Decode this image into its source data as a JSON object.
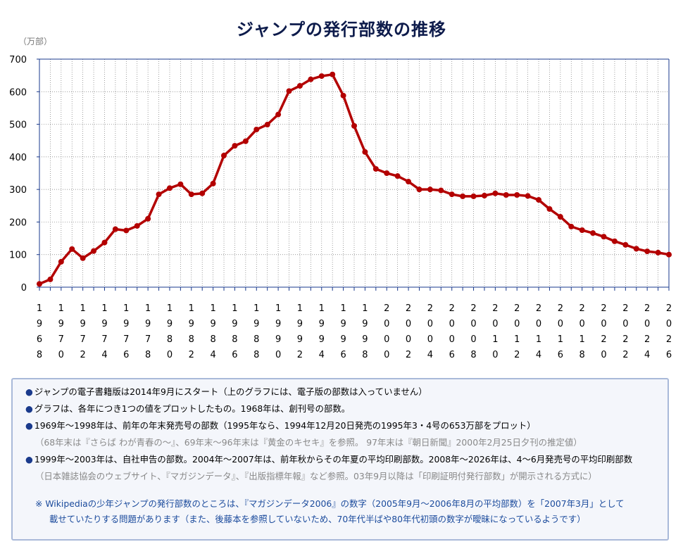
{
  "title": "ジャンプの発行部数の推移",
  "unit_label": "（万部）",
  "chart_data": {
    "type": "line",
    "x": [
      1968,
      1969,
      1970,
      1971,
      1972,
      1973,
      1974,
      1975,
      1976,
      1977,
      1978,
      1979,
      1980,
      1981,
      1982,
      1983,
      1984,
      1985,
      1986,
      1987,
      1988,
      1989,
      1990,
      1991,
      1992,
      1993,
      1994,
      1995,
      1996,
      1997,
      1998,
      1999,
      2000,
      2001,
      2002,
      2003,
      2004,
      2005,
      2006,
      2007,
      2008,
      2009,
      2010,
      2011,
      2012,
      2013,
      2014,
      2015,
      2016,
      2017,
      2018,
      2019,
      2020,
      2021,
      2022,
      2023,
      2024,
      2025,
      2026
    ],
    "values": [
      10,
      24,
      78,
      117,
      89,
      111,
      137,
      178,
      174,
      188,
      210,
      285,
      304,
      316,
      285,
      288,
      318,
      404,
      434,
      448,
      484,
      499,
      530,
      602,
      618,
      638,
      648,
      653,
      588,
      495,
      415,
      363,
      350,
      341,
      324,
      300,
      300,
      297,
      285,
      279,
      279,
      281,
      288,
      283,
      283,
      280,
      268,
      240,
      216,
      186,
      175,
      166,
      155,
      141,
      130,
      118,
      110,
      106,
      100
    ],
    "x_tick_labels": [
      "1968",
      "1970",
      "1972",
      "1974",
      "1976",
      "1978",
      "1980",
      "1982",
      "1984",
      "1986",
      "1988",
      "1990",
      "1992",
      "1994",
      "1996",
      "1998",
      "2000",
      "2002",
      "2004",
      "2006",
      "2008",
      "2010",
      "2012",
      "2014",
      "2016",
      "2018",
      "2020",
      "2022",
      "2024",
      "2026"
    ],
    "ylim": [
      0,
      700
    ],
    "y_ticks": [
      0,
      100,
      200,
      300,
      400,
      500,
      600,
      700
    ],
    "grid": true,
    "line_color": "#b30000",
    "axis_color": "#1a3a8c"
  },
  "notes": [
    {
      "text": "ジャンプの電子書籍版は2014年9月にスタート（上のグラフには、電子版の部数は入っていません）",
      "sub": ""
    },
    {
      "text": "グラフは、各年につき1つの値をプロットしたもの。1968年は、創刊号の部数。",
      "sub": ""
    },
    {
      "text": "1969年～1998年は、前年の年末発売号の部数（1995年なら、1994年12月20日発売の1995年3・4号の653万部をプロット）",
      "sub": "（68年末は『さらば わが青春の～』、69年末～96年末は『黄金のキセキ』を参照。 97年末は『朝日新聞』2000年2月25日夕刊の推定値）"
    },
    {
      "text": "1999年～2003年は、自社申告の部数。2004年～2007年は、前年秋からその年夏の平均印刷部数。2008年～2026年は、4～6月発売号の平均印刷部数",
      "sub": "（日本雑誌協会のウェブサイト、『マガジンデータ』、『出版指標年報』など参照。03年9月以降は「印刷証明付発行部数」が開示される方式に）"
    }
  ],
  "bullet": "●",
  "wiki_note": {
    "line1": "※ Wikipediaの少年ジャンプの発行部数のところは、『マガジンデータ2006』の数字（2005年9月～2006年8月の平均部数）を「2007年3月」として",
    "line2": "載せていたりする問題があります（また、後藤本を参照していないため、70年代半ばや80年代初頭の数字が曖昧になっているようです）"
  }
}
